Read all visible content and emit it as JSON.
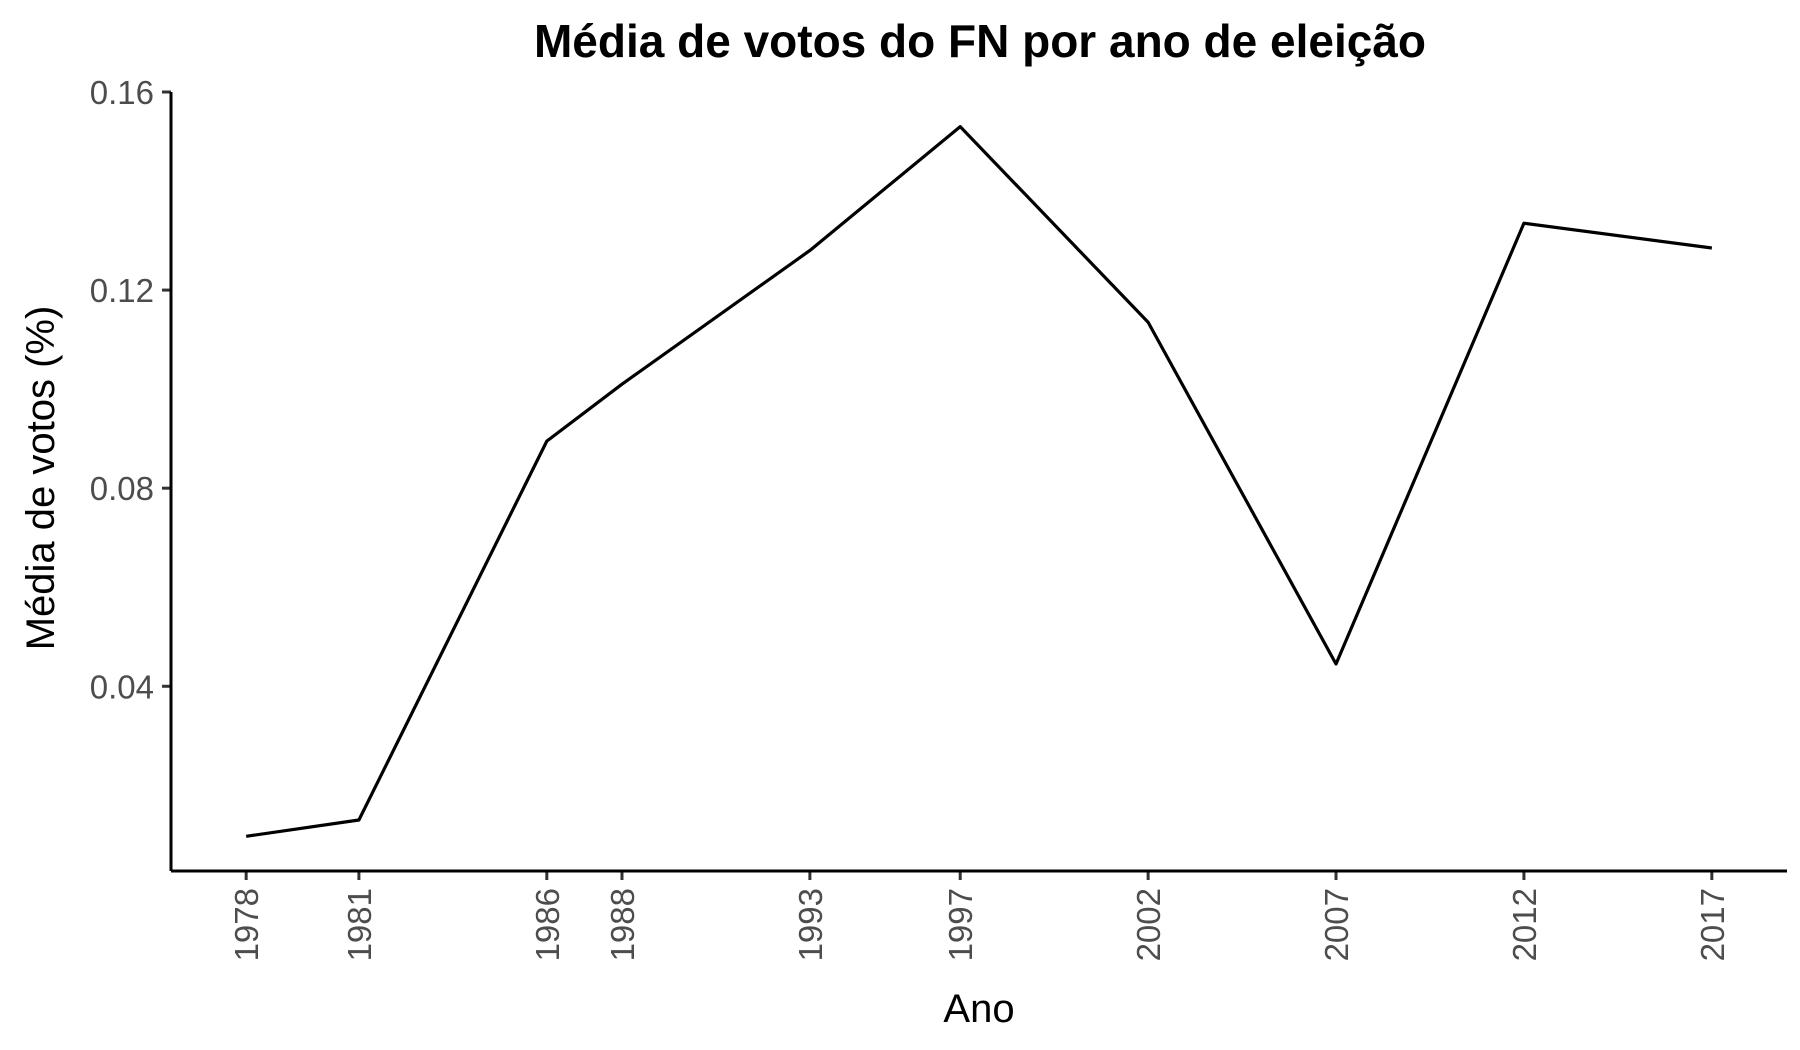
{
  "chart_data": {
    "type": "line",
    "title": "Média de votos do FN por ano de eleição",
    "xlabel": "Ano",
    "ylabel": "Média de votos (%)",
    "x": [
      1978,
      1981,
      1986,
      1988,
      1993,
      1997,
      2002,
      2007,
      2012,
      2017
    ],
    "x_tick_labels": [
      "1978",
      "1981",
      "1986",
      "1988",
      "1993",
      "1997",
      "2002",
      "2007",
      "2012",
      "2017"
    ],
    "y": [
      0.0097,
      0.013,
      0.0895,
      0.101,
      0.128,
      0.153,
      0.1135,
      0.0445,
      0.1335,
      0.1285
    ],
    "y_ticks": [
      0.04,
      0.08,
      0.12,
      0.16
    ],
    "y_tick_labels": [
      "0.04",
      "0.08",
      "0.12",
      "0.16"
    ],
    "xlim": [
      1976,
      2019
    ],
    "ylim": [
      0.0027,
      0.16
    ],
    "grid": false,
    "line_color": "#000000"
  }
}
